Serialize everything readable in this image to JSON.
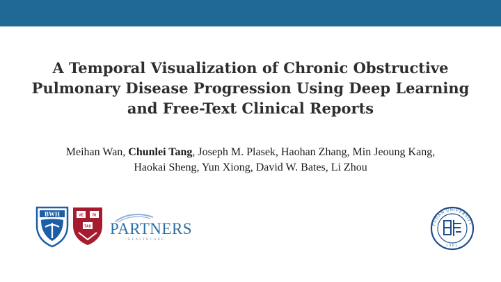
{
  "slide": {
    "title_lines": [
      "A Temporal Visualization of Chronic Obstructive",
      "Pulmonary Disease Progression Using Deep Learning",
      "and Free-Text Clinical Reports"
    ],
    "authors": {
      "line1_first": "Meihan Wan, ",
      "line1_bold": "Chunlei Tang",
      "line1_rest": ", Joseph M. Plasek, Haohan Zhang, Min Jeoung Kang,",
      "line2": "Haokai Sheng, Yun Xiong, David W. Bates, Li Zhou"
    },
    "colors": {
      "top_bar": "#1f6996",
      "bwh_blue": "#1d5ea8",
      "harvard_crimson": "#a51c30",
      "partners_blue": "#2f6ea3",
      "fudan_blue": "#1e4e8c"
    },
    "logos": {
      "bwh": {
        "icon": "bwh-shield-logo",
        "text": "BWH"
      },
      "harvard": {
        "icon": "harvard-shield-logo",
        "text": "VE RI TAS"
      },
      "partners": {
        "icon": "partners-healthcare-logo",
        "text": "PARTNERS",
        "subtext": "HEALTHCARE"
      },
      "fudan": {
        "icon": "fudan-university-seal",
        "text": "FUDAN UNIVERSITY",
        "year": "1905"
      }
    }
  }
}
